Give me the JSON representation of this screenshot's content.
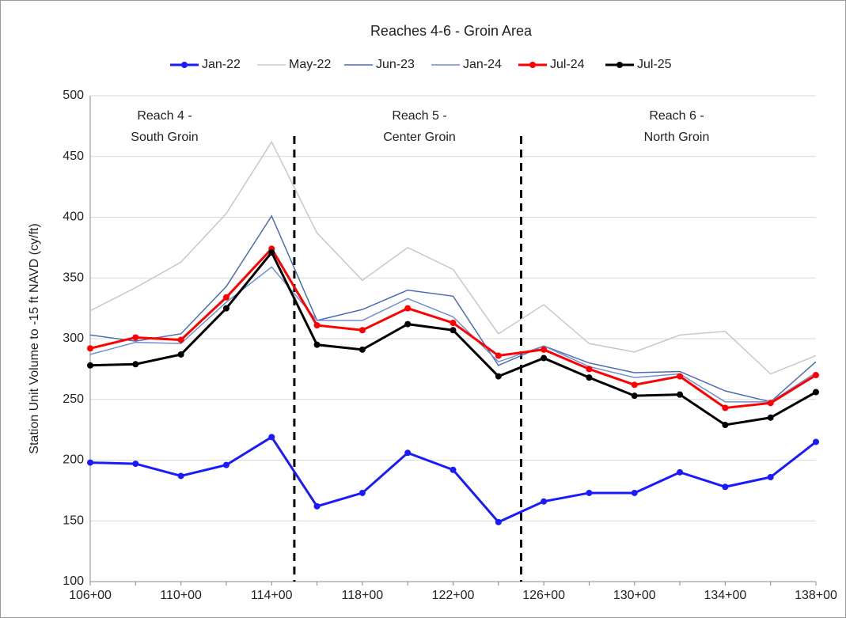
{
  "chart_data": {
    "type": "line",
    "title": "Reaches 4-6 - Groin Area",
    "y_label": "Station Unit Volume to -15 ft NAVD (cy/ft)",
    "categories": [
      "106+00",
      null,
      "110+00",
      null,
      "114+00",
      null,
      "118+00",
      null,
      "122+00",
      null,
      "126+00",
      null,
      "130+00",
      null,
      "134+00",
      null,
      "138+00"
    ],
    "ylim": [
      100,
      500
    ],
    "yticks": [
      100,
      150,
      200,
      250,
      300,
      350,
      400,
      450,
      500
    ],
    "grid": true,
    "legend": "top",
    "annotations": [
      [
        "Reach 4 -",
        "South Groin"
      ],
      [
        "Reach 5 -",
        "Center Groin"
      ],
      [
        "Reach 6 -",
        "North Groin"
      ]
    ],
    "series": [
      {
        "name": "Jan-22",
        "color": "#1a1aff",
        "markers": true,
        "values": [
          198,
          197,
          187,
          196,
          219,
          162,
          173,
          206,
          192,
          149,
          166,
          173,
          173,
          190,
          178,
          186,
          215
        ]
      },
      {
        "name": "May-22",
        "color": "#c8c8c8",
        "markers": false,
        "values": [
          323,
          342,
          363,
          403,
          462,
          387,
          348,
          375,
          357,
          304,
          328,
          296,
          289,
          303,
          306,
          271,
          286
        ]
      },
      {
        "name": "Jun-23",
        "color": "#4a6db5",
        "markers": false,
        "values": [
          303,
          298,
          304,
          343,
          401,
          315,
          324,
          340,
          335,
          278,
          294,
          280,
          272,
          273,
          257,
          248,
          281
        ]
      },
      {
        "name": "Jan-24",
        "color": "#6f8fd0",
        "markers": false,
        "values": [
          287,
          297,
          296,
          330,
          359,
          315,
          315,
          333,
          318,
          281,
          294,
          277,
          268,
          271,
          248,
          248,
          272
        ]
      },
      {
        "name": "Jul-24",
        "color": "#ff0000",
        "markers": true,
        "values": [
          292,
          301,
          299,
          334,
          374,
          311,
          307,
          325,
          313,
          286,
          291,
          275,
          262,
          269,
          243,
          247,
          270
        ]
      },
      {
        "name": "Jul-25",
        "color": "#000000",
        "markers": true,
        "values": [
          278,
          279,
          287,
          325,
          371,
          295,
          291,
          312,
          307,
          269,
          284,
          268,
          253,
          254,
          229,
          235,
          256
        ]
      }
    ]
  }
}
